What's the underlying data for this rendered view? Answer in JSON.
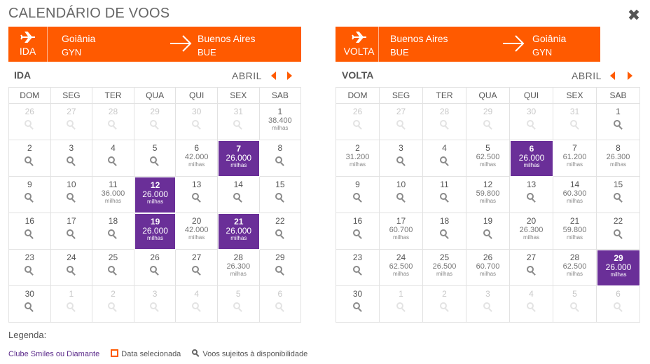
{
  "title": "CALENDÁRIO DE VOOS",
  "close_icon": "close-icon",
  "colors": {
    "brand": "#ff5a00",
    "selected": "#6a2f98"
  },
  "legend": {
    "title": "Legenda:",
    "smiles": "Clube Smiles ou Diamante",
    "selected": "Data selecionada",
    "availability": "Voos sujeitos à disponibilidade"
  },
  "weekdays": [
    "DOM",
    "SEG",
    "TER",
    "QUA",
    "QUI",
    "SEX",
    "SAB"
  ],
  "ida": {
    "leg_label": "IDA",
    "origin_city": "Goiânia",
    "origin_code": "GYN",
    "dest_city": "Buenos Aires",
    "dest_code": "BUE",
    "section_label": "IDA",
    "month": "ABRIL",
    "cells": [
      {
        "day": "26",
        "out": true
      },
      {
        "day": "27",
        "out": true
      },
      {
        "day": "28",
        "out": true
      },
      {
        "day": "29",
        "out": true
      },
      {
        "day": "30",
        "out": true
      },
      {
        "day": "31",
        "out": true
      },
      {
        "day": "1",
        "price": "38.400",
        "unit": "milhas"
      },
      {
        "day": "2"
      },
      {
        "day": "3"
      },
      {
        "day": "4"
      },
      {
        "day": "5"
      },
      {
        "day": "6",
        "price": "42.000",
        "unit": "milhas"
      },
      {
        "day": "7",
        "price": "26.000",
        "unit": "milhas",
        "sel": true
      },
      {
        "day": "8"
      },
      {
        "day": "9"
      },
      {
        "day": "10"
      },
      {
        "day": "11",
        "price": "36.000",
        "unit": "milhas"
      },
      {
        "day": "12",
        "price": "26.000",
        "unit": "milhas",
        "sel": true
      },
      {
        "day": "13"
      },
      {
        "day": "14"
      },
      {
        "day": "15"
      },
      {
        "day": "16"
      },
      {
        "day": "17"
      },
      {
        "day": "18"
      },
      {
        "day": "19",
        "price": "26.000",
        "unit": "milhas",
        "sel": true
      },
      {
        "day": "20",
        "price": "42.000",
        "unit": "milhas"
      },
      {
        "day": "21",
        "price": "26.000",
        "unit": "milhas",
        "sel": true
      },
      {
        "day": "22"
      },
      {
        "day": "23"
      },
      {
        "day": "24"
      },
      {
        "day": "25"
      },
      {
        "day": "26"
      },
      {
        "day": "27"
      },
      {
        "day": "28",
        "price": "26.300",
        "unit": "milhas"
      },
      {
        "day": "29"
      },
      {
        "day": "30"
      },
      {
        "day": "1",
        "out": true
      },
      {
        "day": "2",
        "out": true
      },
      {
        "day": "3",
        "out": true
      },
      {
        "day": "4",
        "out": true
      },
      {
        "day": "5",
        "out": true
      },
      {
        "day": "6",
        "out": true
      }
    ]
  },
  "volta": {
    "leg_label": "VOLTA",
    "origin_city": "Buenos Aires",
    "origin_code": "BUE",
    "dest_city": "Goiânia",
    "dest_code": "GYN",
    "section_label": "VOLTA",
    "month": "ABRIL",
    "cells": [
      {
        "day": "26",
        "out": true
      },
      {
        "day": "27",
        "out": true
      },
      {
        "day": "28",
        "out": true
      },
      {
        "day": "29",
        "out": true
      },
      {
        "day": "30",
        "out": true
      },
      {
        "day": "31",
        "out": true
      },
      {
        "day": "1"
      },
      {
        "day": "2",
        "price": "31.200",
        "unit": "milhas"
      },
      {
        "day": "3"
      },
      {
        "day": "4"
      },
      {
        "day": "5",
        "price": "62.500",
        "unit": "milhas"
      },
      {
        "day": "6",
        "price": "26.000",
        "unit": "milhas",
        "sel": true
      },
      {
        "day": "7",
        "price": "61.200",
        "unit": "milhas"
      },
      {
        "day": "8",
        "price": "26.300",
        "unit": "milhas"
      },
      {
        "day": "9"
      },
      {
        "day": "10"
      },
      {
        "day": "11"
      },
      {
        "day": "12",
        "price": "59.800",
        "unit": "milhas"
      },
      {
        "day": "13"
      },
      {
        "day": "14",
        "price": "60.300",
        "unit": "milhas"
      },
      {
        "day": "15"
      },
      {
        "day": "16"
      },
      {
        "day": "17",
        "price": "60.700",
        "unit": "milhas"
      },
      {
        "day": "18"
      },
      {
        "day": "19"
      },
      {
        "day": "20",
        "price": "26.300",
        "unit": "milhas"
      },
      {
        "day": "21",
        "price": "59.800",
        "unit": "milhas"
      },
      {
        "day": "22"
      },
      {
        "day": "23"
      },
      {
        "day": "24",
        "price": "62.500",
        "unit": "milhas"
      },
      {
        "day": "25",
        "price": "26.500",
        "unit": "milhas"
      },
      {
        "day": "26",
        "price": "60.700",
        "unit": "milhas"
      },
      {
        "day": "27"
      },
      {
        "day": "28",
        "price": "62.500",
        "unit": "milhas"
      },
      {
        "day": "29",
        "price": "26.000",
        "unit": "milhas",
        "sel": true
      },
      {
        "day": "30"
      },
      {
        "day": "1",
        "out": true
      },
      {
        "day": "2",
        "out": true
      },
      {
        "day": "3",
        "out": true
      },
      {
        "day": "4",
        "out": true
      },
      {
        "day": "5",
        "out": true
      },
      {
        "day": "6",
        "out": true
      }
    ]
  }
}
